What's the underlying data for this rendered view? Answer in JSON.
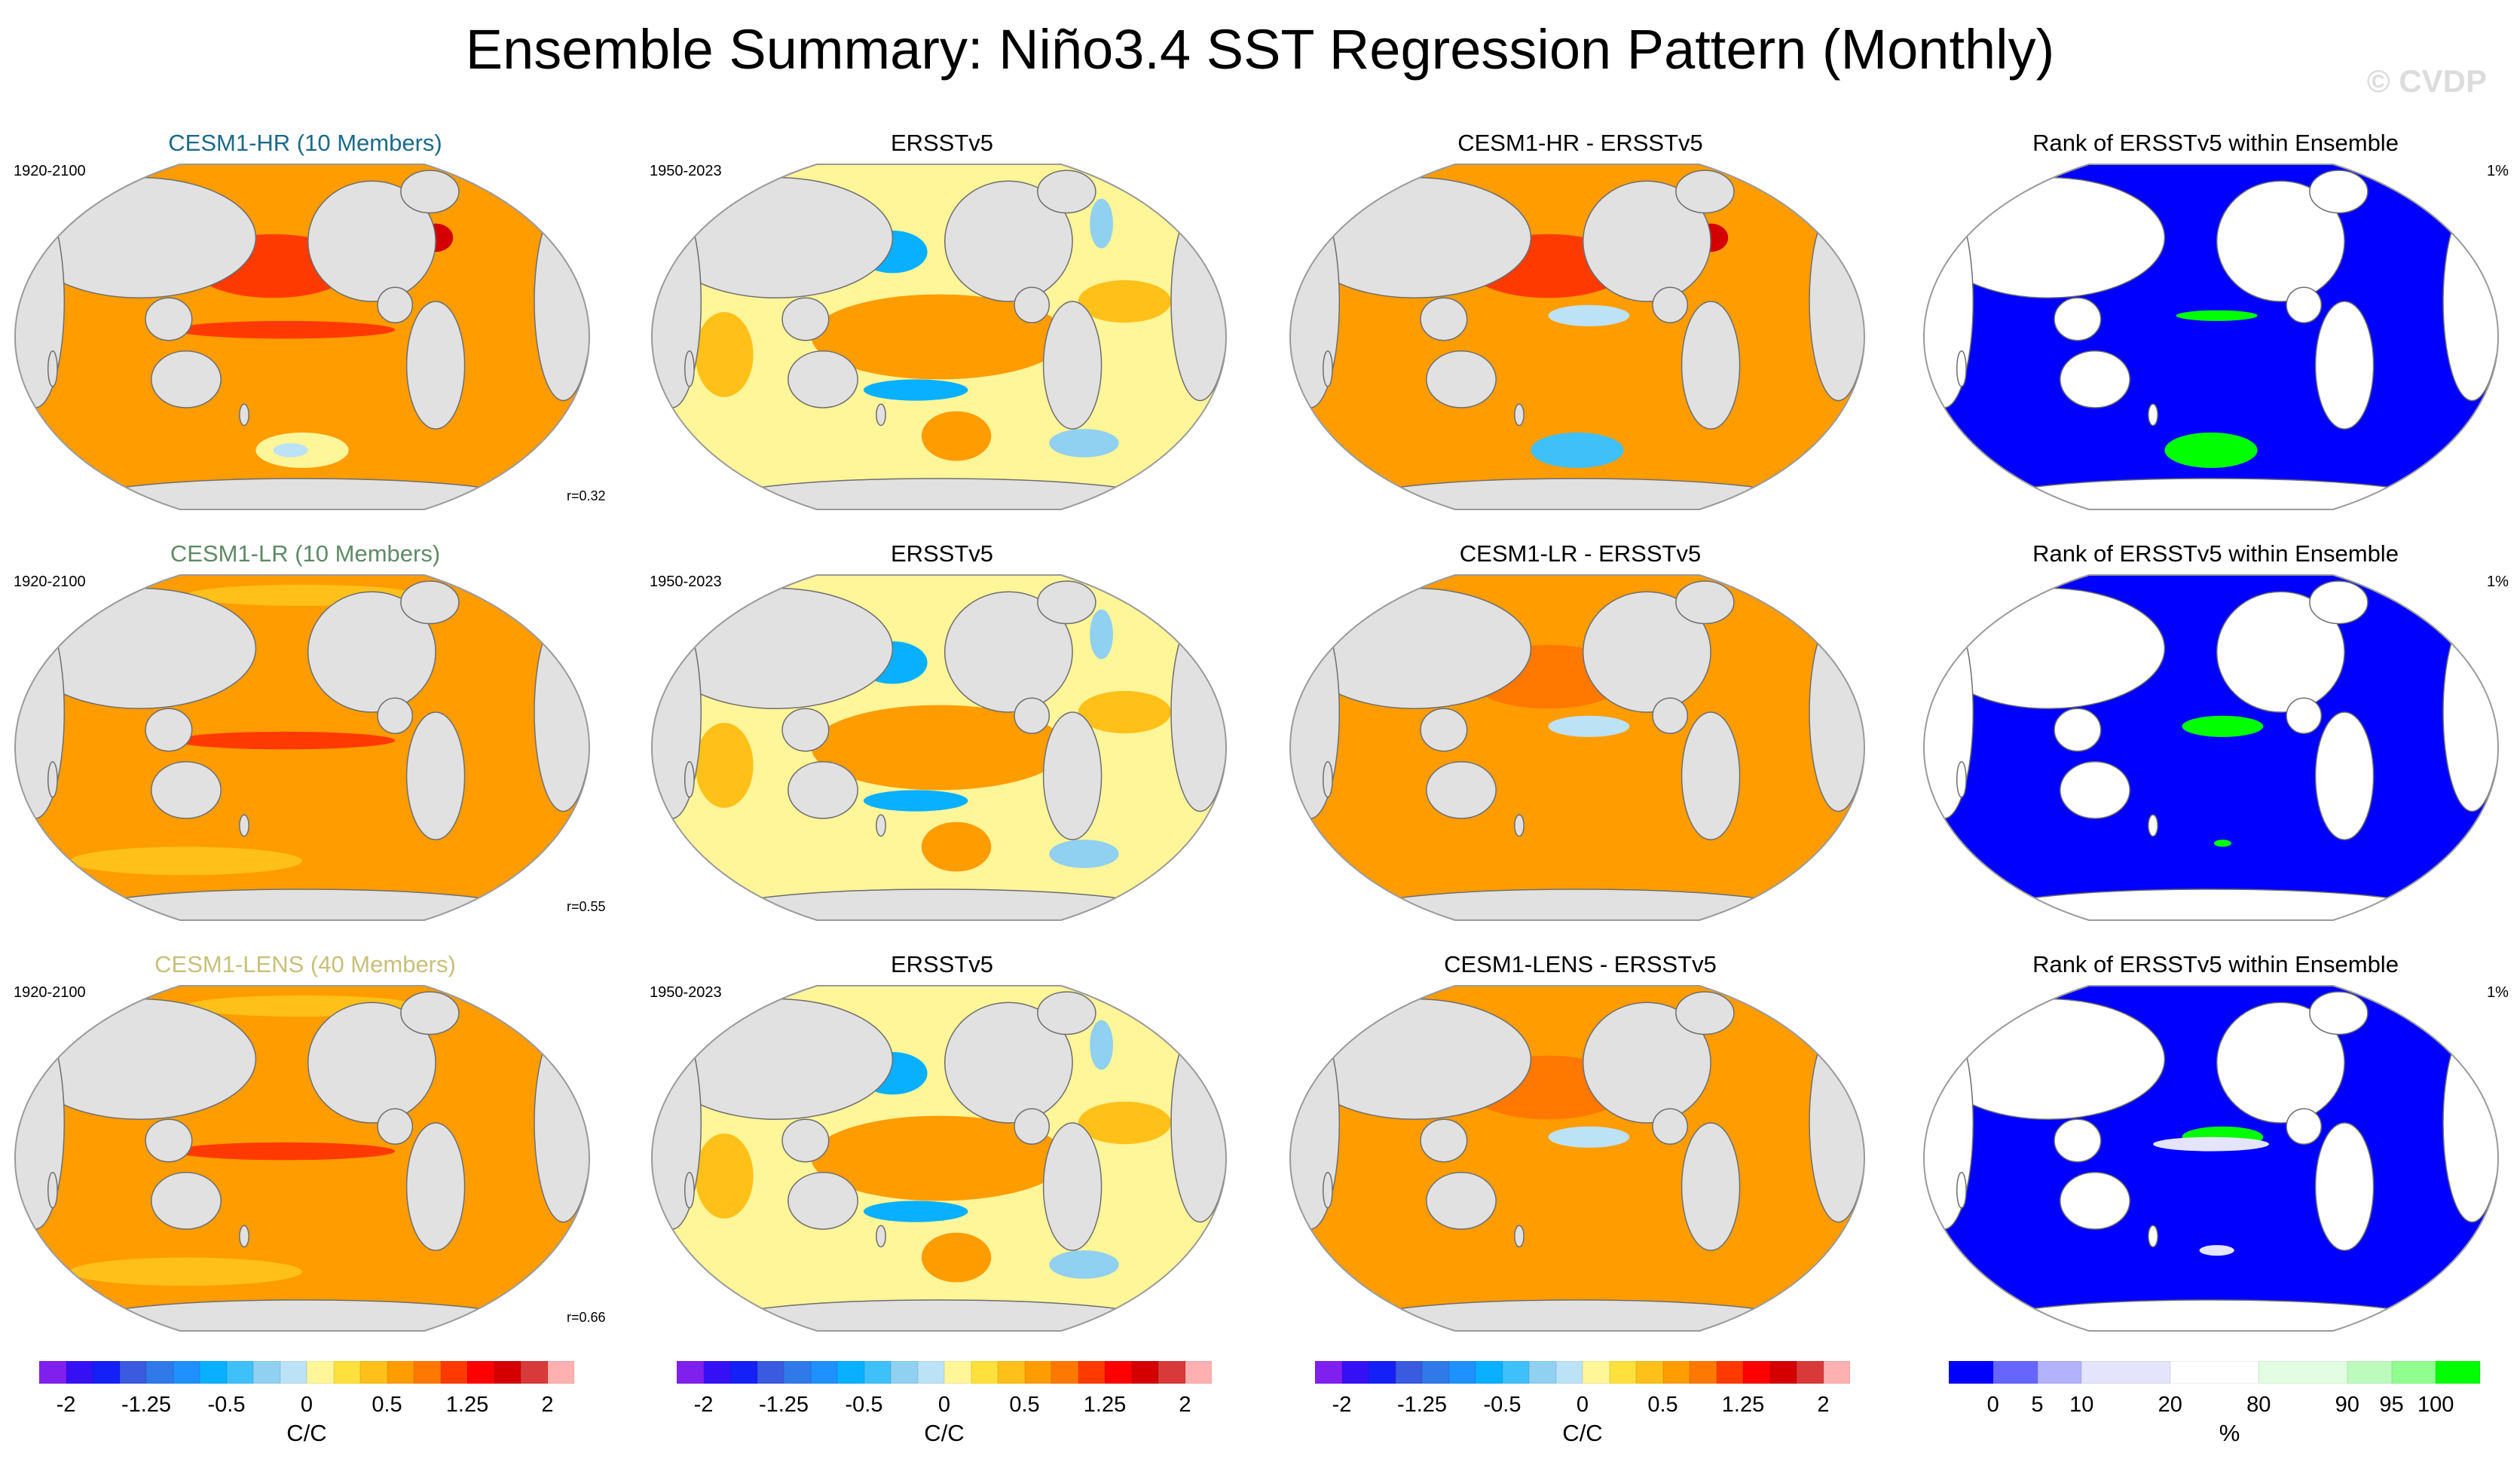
{
  "title": "Ensemble Summary: Niño3.4 SST Regression Pattern (Monthly)",
  "watermark": "© CVDP",
  "rows": [
    {
      "model_title": "CESM1-HR (10 Members)",
      "model_color": "#1a6a8a",
      "model_period": "1920-2100",
      "obs_title": "ERSSTv5",
      "obs_period": "1950-2023",
      "diff_title": "CESM1-HR - ERSSTv5",
      "rank_title": "Rank of ERSSTv5 within Ensemble",
      "rank_pct": "1%",
      "pattern_corr": "r=0.32"
    },
    {
      "model_title": "CESM1-LR (10 Members)",
      "model_color": "#5f8a66",
      "model_period": "1920-2100",
      "obs_title": "ERSSTv5",
      "obs_period": "1950-2023",
      "diff_title": "CESM1-LR - ERSSTv5",
      "rank_title": "Rank of ERSSTv5 within Ensemble",
      "rank_pct": "1%",
      "pattern_corr": "r=0.55"
    },
    {
      "model_title": "CESM1-LENS (40 Members)",
      "model_color": "#c8c07a",
      "model_period": "1920-2100",
      "obs_title": "ERSSTv5",
      "obs_period": "1950-2023",
      "diff_title": "CESM1-LENS - ERSSTv5",
      "rank_title": "Rank of ERSSTv5 within Ensemble",
      "rank_pct": "1%",
      "pattern_corr": "r=0.66"
    }
  ],
  "colors": {
    "land": "#e1e1e1",
    "rank_land": "#ffffff",
    "coast": "#6e6e6e"
  },
  "chart_data": {
    "type": "heatmap",
    "title": "Ensemble Summary: Niño3.4 SST Regression Pattern (Monthly)",
    "projection": "Robinson, Pacific-centered, global",
    "panels_layout": "3 rows x 4 columns",
    "columns": [
      "Model ensemble mean",
      "Observations (ERSSTv5)",
      "Model minus observations",
      "Rank of observations within ensemble"
    ],
    "regression_colorbar": {
      "units": "C/C",
      "tick_labels": [
        "-2",
        "-1.25",
        "-0.5",
        "0",
        "0.5",
        "1.25",
        "2"
      ],
      "colors": [
        "#8020ee",
        "#3610f5",
        "#1420f5",
        "#3a5ae0",
        "#2f7ae8",
        "#1e90ff",
        "#08b0ff",
        "#40c0f8",
        "#90d0f0",
        "#bce2f6",
        "#fff599",
        "#ffe03c",
        "#ffc01a",
        "#ff9c00",
        "#ff7800",
        "#ff3a00",
        "#ff0000",
        "#d40000",
        "#d83a3a",
        "#ffb0b0"
      ]
    },
    "rank_colorbar": {
      "units": "%",
      "tick_labels": [
        "0",
        "5",
        "10",
        "20",
        "80",
        "90",
        "95",
        "100"
      ],
      "colors": [
        "#0000ff",
        "#6666ff",
        "#b2b2ff",
        "#e4e4fc",
        "#ffffff",
        "#e2fde2",
        "#bdfbbd",
        "#90ff90",
        "#00ff00"
      ],
      "relative_widths": [
        1,
        1,
        1,
        2,
        2,
        2,
        1,
        1,
        1
      ]
    },
    "panel_summaries": {
      "model_hr": {
        "background": 0.6,
        "features": [
          {
            "region": "equatorial eastern Pacific tongue",
            "value": 1.1
          },
          {
            "region": "North Pacific",
            "value": 1.0
          },
          {
            "region": "Kuroshio/Okhotsk",
            "value": 1.4
          },
          {
            "region": "Gulf Stream",
            "value": 1.5
          },
          {
            "region": "Southern Ocean Pacific sector",
            "value": 0.1
          },
          {
            "region": "Southern Ocean patches",
            "value": -0.1
          },
          {
            "region": "Tropical Atlantic/Indian",
            "value": 0.6
          }
        ]
      },
      "model_lr": {
        "background": 0.6,
        "features": [
          {
            "region": "equatorial eastern Pacific tongue",
            "value": 1.1
          },
          {
            "region": "North Pacific",
            "value": 0.6
          },
          {
            "region": "Southern Ocean",
            "value": 0.4
          },
          {
            "region": "Arctic margins",
            "value": 0.3
          }
        ]
      },
      "model_lens": {
        "background": 0.5,
        "features": [
          {
            "region": "equatorial eastern Pacific tongue",
            "value": 1.1
          },
          {
            "region": "North Pacific",
            "value": 0.6
          },
          {
            "region": "Southern Ocean",
            "value": 0.4
          },
          {
            "region": "Arctic margins",
            "value": 0.3
          }
        ]
      },
      "obs": {
        "background": 0.1,
        "features": [
          {
            "region": "equatorial eastern Pacific (Niño3.4)",
            "value": 1.3
          },
          {
            "region": "eastern Pacific flank",
            "value": 0.6
          },
          {
            "region": "central North Pacific",
            "value": -0.6
          },
          {
            "region": "South Pacific convergence zone",
            "value": -0.6
          },
          {
            "region": "South Pacific mid-latitudes",
            "value": 0.5
          },
          {
            "region": "Indian Ocean",
            "value": 0.4
          },
          {
            "region": "South Atlantic",
            "value": -0.3
          },
          {
            "region": "North Atlantic subpolar",
            "value": -0.3
          },
          {
            "region": "Tropical North Atlantic",
            "value": 0.3
          }
        ]
      },
      "diff_hr": {
        "background": 0.6,
        "features": [
          {
            "region": "North Pacific",
            "value": 1.1
          },
          {
            "region": "equatorial eastern Pacific",
            "value": -0.1
          },
          {
            "region": "Southern Ocean Pacific sector",
            "value": -0.5
          },
          {
            "region": "Gulf Stream",
            "value": 1.5
          }
        ]
      },
      "diff_lr": {
        "background": 0.5,
        "features": [
          {
            "region": "North Pacific",
            "value": 0.8
          },
          {
            "region": "equatorial eastern Pacific",
            "value": -0.1
          }
        ]
      },
      "diff_lens": {
        "background": 0.5,
        "features": [
          {
            "region": "North Pacific",
            "value": 0.8
          },
          {
            "region": "equatorial eastern Pacific",
            "value": -0.1
          }
        ]
      },
      "rank_hr": {
        "background_pct": 0,
        "features": [
          {
            "region": "equatorial central Pacific",
            "pct": 100
          },
          {
            "region": "Southern Ocean Pacific sector",
            "pct": 100
          }
        ]
      },
      "rank_lr": {
        "background_pct": 0,
        "features": [
          {
            "region": "equatorial eastern Pacific",
            "pct": 100
          },
          {
            "region": "small South Pacific patch",
            "pct": 100
          }
        ]
      },
      "rank_lens": {
        "background_pct": 0,
        "features": [
          {
            "region": "equatorial eastern Pacific",
            "pct": 100
          },
          {
            "region": "equatorial edges",
            "pct": 15
          },
          {
            "region": "South Pacific patch",
            "pct": 15
          }
        ]
      }
    }
  }
}
